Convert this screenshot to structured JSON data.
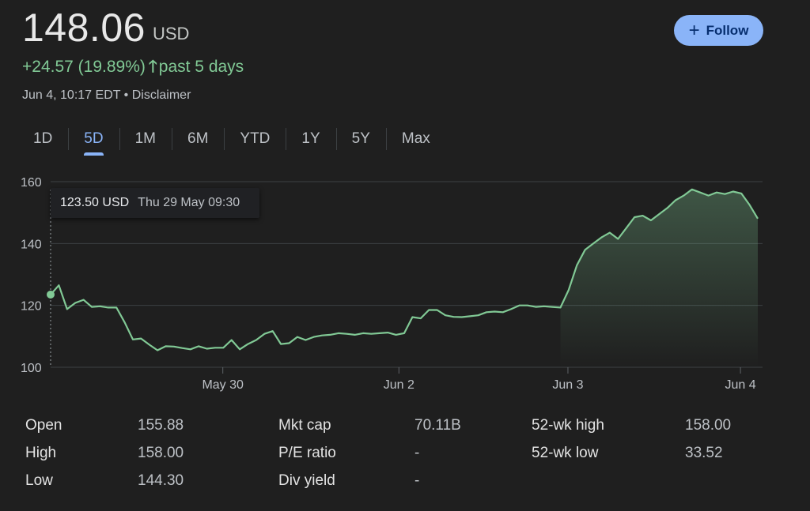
{
  "quote": {
    "price": "148.06",
    "currency": "USD",
    "change": "+24.57 (19.89%)",
    "period": "past 5 days",
    "timestamp": "Jun 4, 10:17 EDT",
    "disclaimer": "Disclaimer",
    "color_up": "#81c995"
  },
  "follow_label": "Follow",
  "tabs": [
    "1D",
    "5D",
    "1M",
    "6M",
    "YTD",
    "1Y",
    "5Y",
    "Max"
  ],
  "active_tab": "5D",
  "tooltip": {
    "price": "123.50 USD",
    "date": "Thu 29 May 09:30"
  },
  "chart_data": {
    "type": "area",
    "title": "",
    "xlabel": "",
    "ylabel": "",
    "ylim": [
      100,
      160
    ],
    "y_ticks": [
      100,
      120,
      140,
      160
    ],
    "x_tick_labels": [
      "May 30",
      "Jun 2",
      "Jun 3",
      "Jun 4"
    ],
    "grid": true,
    "line_color": "#81c995",
    "series": [
      {
        "values": [
          123.5,
          126.5,
          118.8,
          120.8,
          121.8,
          119.5,
          119.7,
          119.3,
          119.3,
          114.5,
          109.0,
          109.3,
          107.3,
          105.5,
          106.8,
          106.7,
          106.2,
          105.8,
          106.8,
          106.0,
          106.3,
          106.3,
          108.8,
          105.8,
          107.5,
          108.8,
          110.8,
          111.7,
          107.5,
          107.8,
          109.8,
          108.8,
          109.8,
          110.3,
          110.5,
          111.0,
          110.8,
          110.5,
          111.0,
          110.8,
          111.0,
          111.2,
          110.5,
          111.0,
          116.2,
          115.8,
          118.5,
          118.5,
          116.8,
          116.3,
          116.2,
          116.5,
          116.8,
          117.8,
          118.0,
          117.8,
          118.8,
          120.0,
          120.0,
          119.5,
          119.7,
          119.5,
          119.3,
          125.0,
          133.0,
          138.0,
          140.0,
          142.0,
          143.5,
          141.5,
          145.0,
          148.5,
          149.0,
          147.5,
          149.5,
          151.5,
          154.0,
          155.5,
          157.5,
          156.5,
          155.5,
          156.5,
          156.0,
          156.8,
          156.2,
          152.5,
          148.06
        ]
      }
    ],
    "previous_close": 123.5
  },
  "stats": [
    {
      "label": "Open",
      "value": "155.88"
    },
    {
      "label": "High",
      "value": "158.00"
    },
    {
      "label": "Low",
      "value": "144.30"
    },
    {
      "label": "Mkt cap",
      "value": "70.11B"
    },
    {
      "label": "P/E ratio",
      "value": "-"
    },
    {
      "label": "Div yield",
      "value": "-"
    },
    {
      "label": "52-wk high",
      "value": "158.00"
    },
    {
      "label": "52-wk low",
      "value": "33.52"
    }
  ]
}
